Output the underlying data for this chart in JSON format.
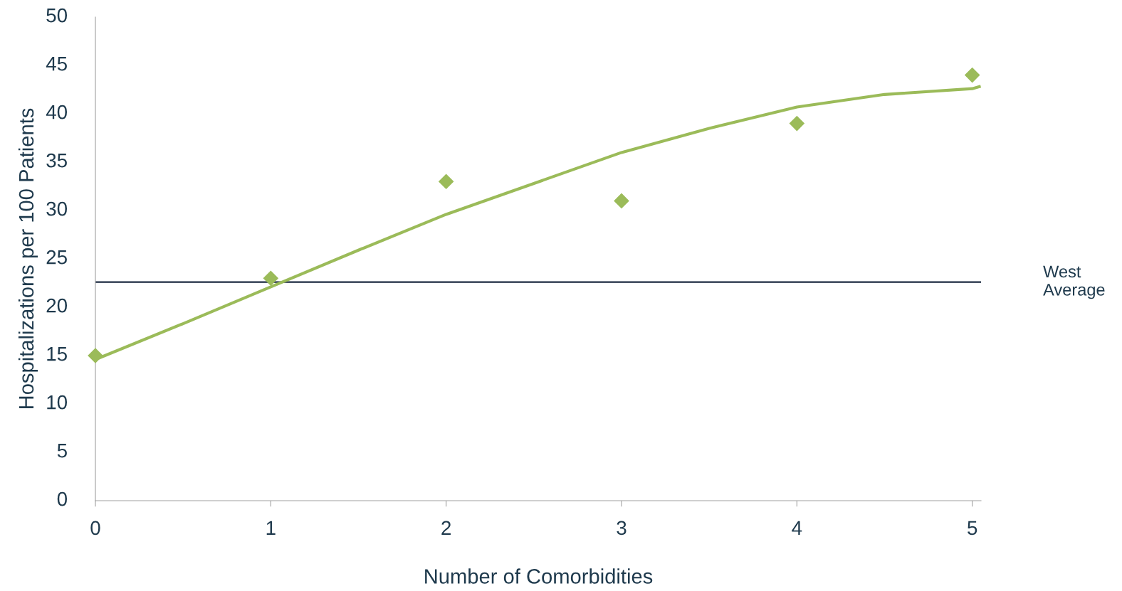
{
  "chart_data": {
    "type": "scatter",
    "xlabel": "Number of Comorbidities",
    "ylabel": "Hospitalizations per 100 Patients",
    "x": [
      0,
      1,
      2,
      3,
      4,
      5
    ],
    "series": [
      {
        "type": "scatter",
        "color": "#9bbb59",
        "marker": "diamond",
        "values": [
          15,
          23,
          33,
          31,
          39,
          44
        ]
      },
      {
        "type": "line",
        "color": "#9bbb59",
        "marker": "none",
        "line_style": "solid",
        "x": [
          0,
          0.5,
          1,
          1.5,
          2,
          2.5,
          3,
          3.5,
          4,
          4.5,
          5,
          5.04
        ],
        "values": [
          14.6,
          18.3,
          22.1,
          25.9,
          29.6,
          32.8,
          36,
          38.5,
          40.7,
          42.0,
          42.6,
          42.8
        ]
      }
    ],
    "xlim": [
      0,
      5.05
    ],
    "xticks": [
      0,
      1,
      2,
      3,
      4,
      5
    ],
    "ylim": [
      0,
      50
    ],
    "yticks": [
      0,
      5,
      10,
      15,
      20,
      25,
      30,
      35,
      40,
      45,
      50
    ],
    "ref_lines": [
      {
        "axis": "y",
        "value": 22.6,
        "label": "West\nAverage",
        "color": "#1b2a41",
        "line_style": "solid"
      }
    ],
    "grid": false,
    "legend": false
  }
}
